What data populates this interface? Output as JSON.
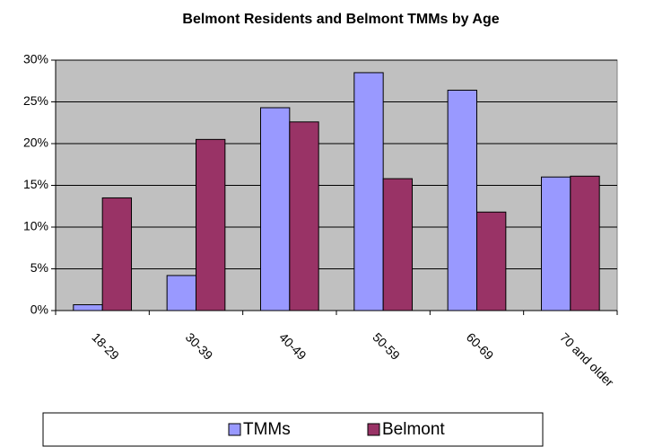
{
  "chart_data": {
    "type": "bar",
    "title": "Belmont Residents and Belmont TMMs by Age",
    "categories": [
      "18-29",
      "30-39",
      "40-49",
      "50-59",
      "60-69",
      "70 and older"
    ],
    "series": [
      {
        "name": "TMMs",
        "color": "#9999ff",
        "values": [
          0.7,
          4.2,
          24.3,
          28.5,
          26.4,
          16.0
        ]
      },
      {
        "name": "Belmont",
        "color": "#993366",
        "values": [
          13.5,
          20.5,
          22.6,
          15.8,
          11.8,
          16.1
        ]
      }
    ],
    "ylim": [
      0,
      30
    ],
    "yticks": [
      {
        "value": 0,
        "label": "0%"
      },
      {
        "value": 5,
        "label": "5%"
      },
      {
        "value": 10,
        "label": "10%"
      },
      {
        "value": 15,
        "label": "15%"
      },
      {
        "value": 20,
        "label": "20%"
      },
      {
        "value": 25,
        "label": "25%"
      },
      {
        "value": 30,
        "label": "30%"
      }
    ],
    "grid": true,
    "legend": "bottom"
  }
}
